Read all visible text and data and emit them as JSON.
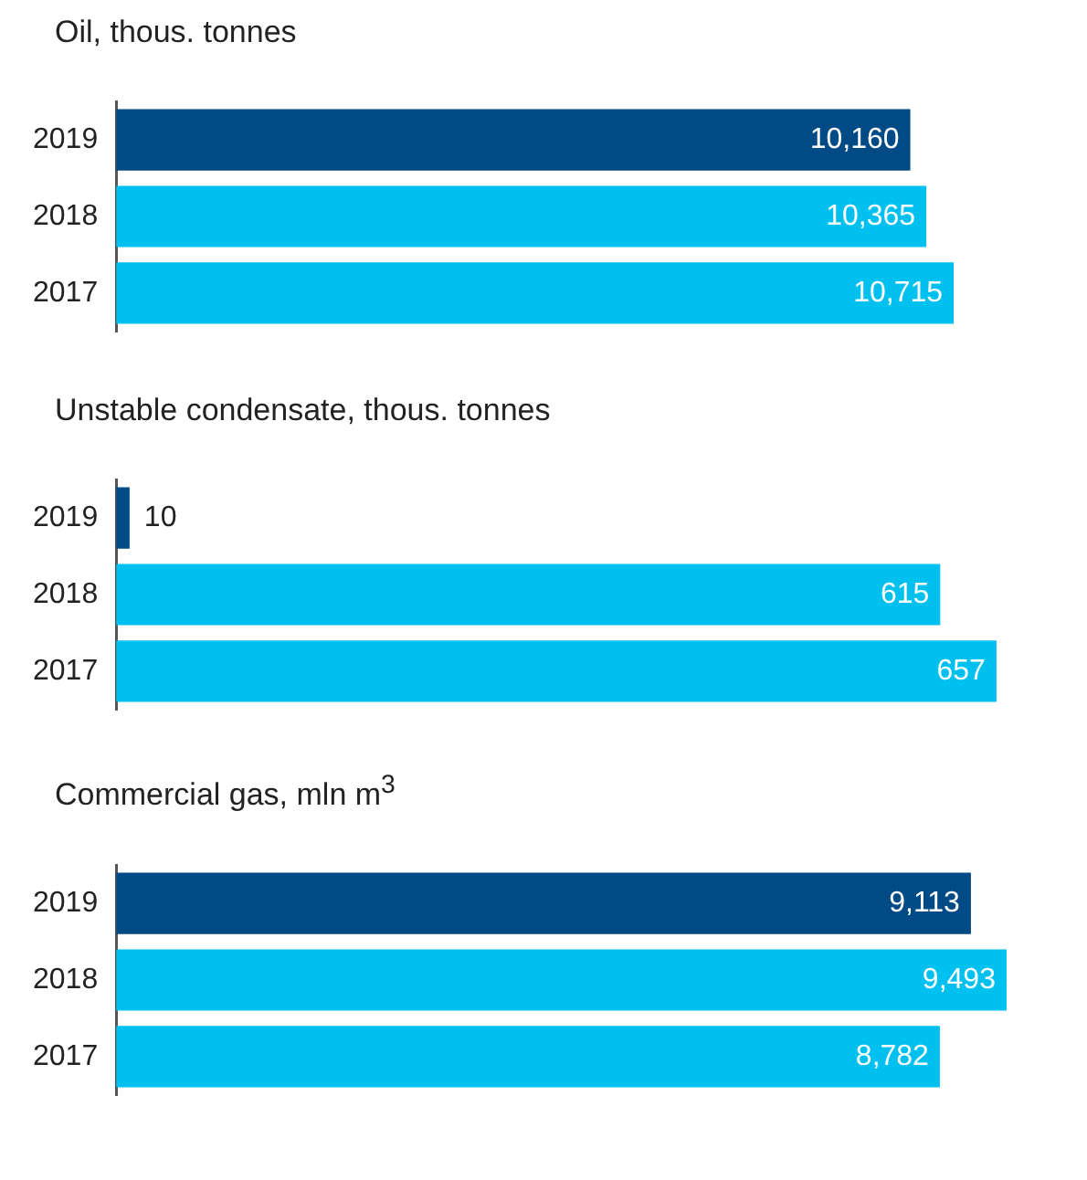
{
  "chart_data": [
    {
      "type": "bar",
      "orientation": "horizontal",
      "title": "Oil, thous. tonnes",
      "categories": [
        "2019",
        "2018",
        "2017"
      ],
      "values": [
        10160,
        10365,
        10715
      ],
      "value_labels": [
        "10,160",
        "10,365",
        "10,715"
      ],
      "colors": [
        "#004a85",
        "#00c0f0",
        "#00c0f0"
      ],
      "tick_labels": "y",
      "grid": false,
      "legend": false
    },
    {
      "type": "bar",
      "orientation": "horizontal",
      "title": "Unstable condensate, thous. tonnes",
      "categories": [
        "2019",
        "2018",
        "2017"
      ],
      "values": [
        10,
        615,
        657
      ],
      "value_labels": [
        "10",
        "615",
        "657"
      ],
      "colors": [
        "#004a85",
        "#00c0f0",
        "#00c0f0"
      ],
      "tick_labels": "y",
      "grid": false,
      "legend": false
    },
    {
      "type": "bar",
      "orientation": "horizontal",
      "title": "Commercial gas, mln m$^{3}$",
      "categories": [
        "2019",
        "2018",
        "2017"
      ],
      "values": [
        9113,
        9493,
        8782
      ],
      "value_labels": [
        "9,113",
        "9,493",
        "8,782"
      ],
      "colors": [
        "#004a85",
        "#00c0f0",
        "#00c0f0"
      ],
      "tick_labels": "y",
      "grid": false,
      "legend": false
    }
  ]
}
